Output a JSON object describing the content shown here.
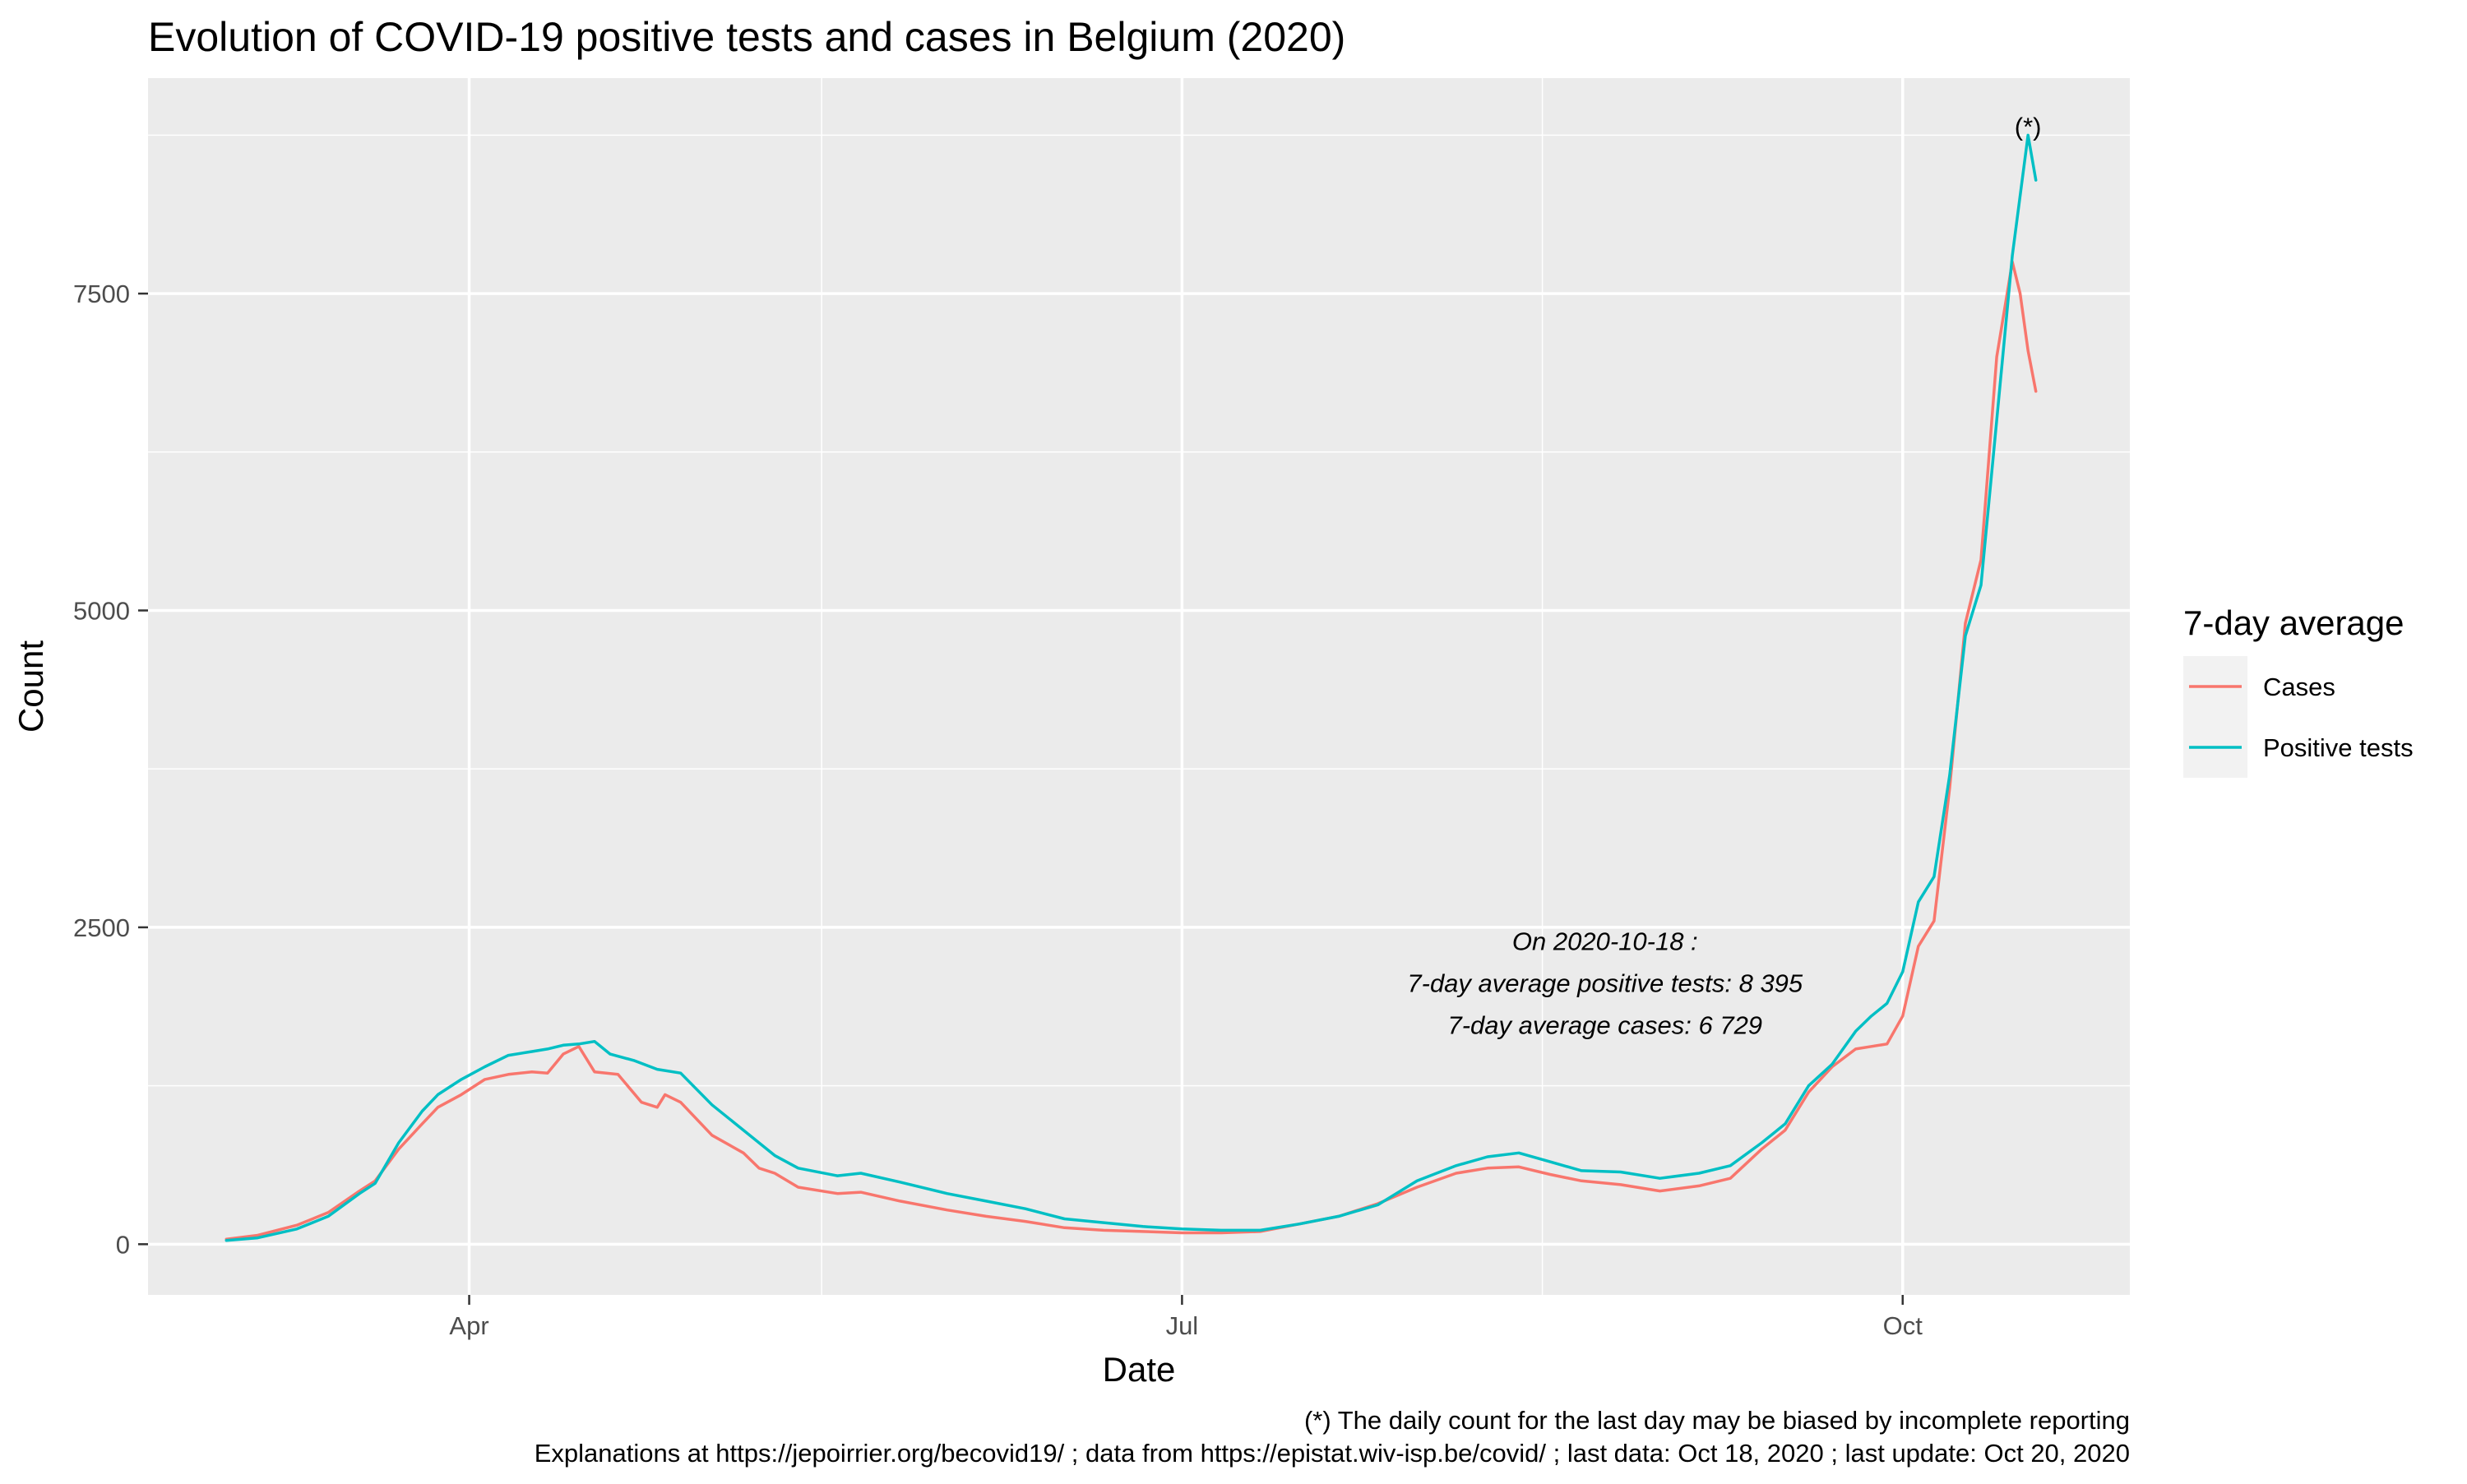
{
  "chart_data": {
    "type": "line",
    "title": "Evolution of COVID-19 positive tests and cases in Belgium (2020)",
    "xlabel": "Date",
    "ylabel": "Count",
    "x_type": "date",
    "xlim": [
      "2020-02-20",
      "2020-10-30"
    ],
    "ylim": [
      -400,
      9200
    ],
    "x_ticks": [
      {
        "date": "2020-04-01",
        "label": "Apr"
      },
      {
        "date": "2020-07-01",
        "label": "Jul"
      },
      {
        "date": "2020-10-01",
        "label": "Oct"
      }
    ],
    "x_minor_ticks": [
      "2020-05-16",
      "2020-08-16"
    ],
    "y_ticks": [
      0,
      2500,
      5000,
      7500
    ],
    "y_minor_ticks": [
      1250,
      3750,
      6250,
      8750
    ],
    "grid": true,
    "legend": {
      "title": "7-day average",
      "position": "right",
      "entries": [
        "Cases",
        "Positive tests"
      ]
    },
    "series": [
      {
        "name": "Cases",
        "color": "#F8766D",
        "points": [
          [
            "2020-03-01",
            40
          ],
          [
            "2020-03-05",
            70
          ],
          [
            "2020-03-10",
            150
          ],
          [
            "2020-03-14",
            250
          ],
          [
            "2020-03-18",
            420
          ],
          [
            "2020-03-20",
            500
          ],
          [
            "2020-03-23",
            750
          ],
          [
            "2020-03-26",
            950
          ],
          [
            "2020-03-28",
            1080
          ],
          [
            "2020-03-31",
            1180
          ],
          [
            "2020-04-03",
            1300
          ],
          [
            "2020-04-06",
            1340
          ],
          [
            "2020-04-09",
            1360
          ],
          [
            "2020-04-11",
            1350
          ],
          [
            "2020-04-13",
            1500
          ],
          [
            "2020-04-15",
            1560
          ],
          [
            "2020-04-17",
            1360
          ],
          [
            "2020-04-20",
            1340
          ],
          [
            "2020-04-23",
            1120
          ],
          [
            "2020-04-25",
            1080
          ],
          [
            "2020-04-26",
            1180
          ],
          [
            "2020-04-28",
            1120
          ],
          [
            "2020-05-02",
            860
          ],
          [
            "2020-05-06",
            720
          ],
          [
            "2020-05-08",
            600
          ],
          [
            "2020-05-10",
            560
          ],
          [
            "2020-05-13",
            450
          ],
          [
            "2020-05-18",
            400
          ],
          [
            "2020-05-21",
            410
          ],
          [
            "2020-05-26",
            340
          ],
          [
            "2020-06-01",
            270
          ],
          [
            "2020-06-06",
            220
          ],
          [
            "2020-06-11",
            180
          ],
          [
            "2020-06-16",
            130
          ],
          [
            "2020-06-21",
            110
          ],
          [
            "2020-06-26",
            100
          ],
          [
            "2020-07-01",
            90
          ],
          [
            "2020-07-06",
            90
          ],
          [
            "2020-07-11",
            100
          ],
          [
            "2020-07-16",
            160
          ],
          [
            "2020-07-21",
            220
          ],
          [
            "2020-07-26",
            320
          ],
          [
            "2020-07-31",
            450
          ],
          [
            "2020-08-05",
            560
          ],
          [
            "2020-08-09",
            600
          ],
          [
            "2020-08-13",
            610
          ],
          [
            "2020-08-17",
            550
          ],
          [
            "2020-08-21",
            500
          ],
          [
            "2020-08-26",
            470
          ],
          [
            "2020-08-31",
            420
          ],
          [
            "2020-09-05",
            460
          ],
          [
            "2020-09-09",
            520
          ],
          [
            "2020-09-13",
            750
          ],
          [
            "2020-09-16",
            900
          ],
          [
            "2020-09-19",
            1200
          ],
          [
            "2020-09-22",
            1400
          ],
          [
            "2020-09-25",
            1540
          ],
          [
            "2020-09-27",
            1560
          ],
          [
            "2020-09-29",
            1580
          ],
          [
            "2020-10-01",
            1800
          ],
          [
            "2020-10-03",
            2350
          ],
          [
            "2020-10-05",
            2550
          ],
          [
            "2020-10-07",
            3600
          ],
          [
            "2020-10-09",
            4900
          ],
          [
            "2020-10-11",
            5400
          ],
          [
            "2020-10-13",
            7000
          ],
          [
            "2020-10-15",
            7750
          ],
          [
            "2020-10-16",
            7500
          ],
          [
            "2020-10-17",
            7050
          ],
          [
            "2020-10-18",
            6729
          ]
        ]
      },
      {
        "name": "Positive tests",
        "color": "#00BFC4",
        "points": [
          [
            "2020-03-01",
            30
          ],
          [
            "2020-03-05",
            50
          ],
          [
            "2020-03-10",
            120
          ],
          [
            "2020-03-14",
            220
          ],
          [
            "2020-03-18",
            400
          ],
          [
            "2020-03-20",
            480
          ],
          [
            "2020-03-23",
            800
          ],
          [
            "2020-03-26",
            1050
          ],
          [
            "2020-03-28",
            1180
          ],
          [
            "2020-03-31",
            1300
          ],
          [
            "2020-04-03",
            1400
          ],
          [
            "2020-04-06",
            1490
          ],
          [
            "2020-04-09",
            1520
          ],
          [
            "2020-04-11",
            1540
          ],
          [
            "2020-04-13",
            1570
          ],
          [
            "2020-04-15",
            1580
          ],
          [
            "2020-04-17",
            1600
          ],
          [
            "2020-04-19",
            1500
          ],
          [
            "2020-04-22",
            1450
          ],
          [
            "2020-04-25",
            1380
          ],
          [
            "2020-04-28",
            1350
          ],
          [
            "2020-05-02",
            1100
          ],
          [
            "2020-05-06",
            900
          ],
          [
            "2020-05-10",
            700
          ],
          [
            "2020-05-13",
            600
          ],
          [
            "2020-05-18",
            540
          ],
          [
            "2020-05-21",
            560
          ],
          [
            "2020-05-26",
            490
          ],
          [
            "2020-06-01",
            400
          ],
          [
            "2020-06-06",
            340
          ],
          [
            "2020-06-11",
            280
          ],
          [
            "2020-06-16",
            200
          ],
          [
            "2020-06-21",
            170
          ],
          [
            "2020-06-26",
            140
          ],
          [
            "2020-07-01",
            120
          ],
          [
            "2020-07-06",
            110
          ],
          [
            "2020-07-11",
            110
          ],
          [
            "2020-07-16",
            160
          ],
          [
            "2020-07-21",
            220
          ],
          [
            "2020-07-26",
            310
          ],
          [
            "2020-07-31",
            500
          ],
          [
            "2020-08-05",
            620
          ],
          [
            "2020-08-09",
            690
          ],
          [
            "2020-08-13",
            720
          ],
          [
            "2020-08-17",
            650
          ],
          [
            "2020-08-21",
            580
          ],
          [
            "2020-08-26",
            570
          ],
          [
            "2020-08-31",
            520
          ],
          [
            "2020-09-05",
            560
          ],
          [
            "2020-09-09",
            620
          ],
          [
            "2020-09-13",
            800
          ],
          [
            "2020-09-16",
            950
          ],
          [
            "2020-09-19",
            1250
          ],
          [
            "2020-09-22",
            1420
          ],
          [
            "2020-09-25",
            1680
          ],
          [
            "2020-09-27",
            1800
          ],
          [
            "2020-09-29",
            1900
          ],
          [
            "2020-10-01",
            2150
          ],
          [
            "2020-10-03",
            2700
          ],
          [
            "2020-10-05",
            2900
          ],
          [
            "2020-10-07",
            3700
          ],
          [
            "2020-10-09",
            4800
          ],
          [
            "2020-10-11",
            5200
          ],
          [
            "2020-10-13",
            6500
          ],
          [
            "2020-10-15",
            7800
          ],
          [
            "2020-10-17",
            8750
          ],
          [
            "2020-10-18",
            8395
          ]
        ]
      }
    ],
    "annotations": [
      {
        "text": "On 2020-10-18 :",
        "x": "2020-08-24",
        "y": 2320,
        "italic": true
      },
      {
        "text": "7-day average positive tests: 8 395",
        "x": "2020-08-24",
        "y": 1990,
        "italic": true
      },
      {
        "text": "7-day average cases: 6 729",
        "x": "2020-08-24",
        "y": 1660,
        "italic": true
      },
      {
        "text": "(*)",
        "x": "2020-10-17",
        "y": 8750,
        "italic": false
      }
    ],
    "caption": [
      "(*) The daily count for the last day may be biased by incomplete reporting",
      "Explanations at https://jepoirrier.org/becovid19/ ; data from https://epistat.wiv-isp.be/covid/ ; last data: Oct 18, 2020  ; last update: Oct 20, 2020"
    ]
  }
}
